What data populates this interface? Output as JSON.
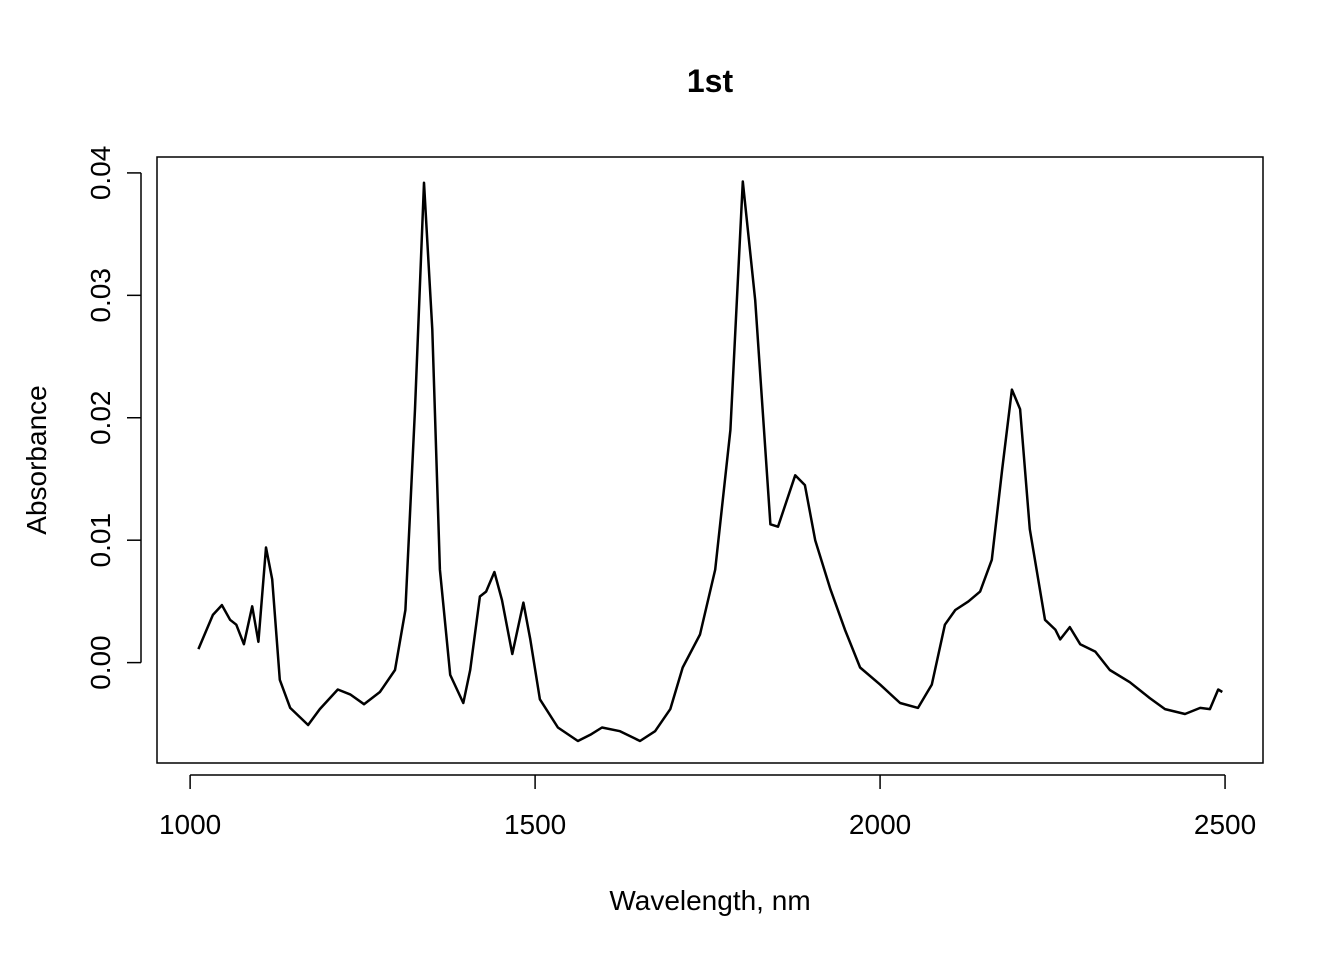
{
  "chart_data": {
    "type": "line",
    "title": "1st",
    "x_label": "Wavelength, nm",
    "y_label": "Absorbance",
    "x": [
      1012,
      1033,
      1046,
      1058,
      1067,
      1078,
      1090,
      1099,
      1110,
      1119,
      1130,
      1145,
      1171,
      1188,
      1214,
      1232,
      1252,
      1275,
      1297,
      1312,
      1326,
      1339,
      1351,
      1362,
      1377,
      1396,
      1406,
      1420,
      1429,
      1441,
      1452,
      1467,
      1483,
      1493,
      1507,
      1533,
      1562,
      1580,
      1597,
      1623,
      1652,
      1674,
      1696,
      1714,
      1739,
      1761,
      1783,
      1801,
      1819,
      1841,
      1852,
      1877,
      1891,
      1906,
      1928,
      1949,
      1971,
      2000,
      2029,
      2055,
      2075,
      2094,
      2109,
      2128,
      2145,
      2162,
      2177,
      2191,
      2203,
      2217,
      2239,
      2254,
      2261,
      2275,
      2290,
      2312,
      2333,
      2362,
      2391,
      2413,
      2442,
      2464,
      2478,
      2490,
      2496
    ],
    "series": [
      {
        "name": "1st",
        "color": "#000000",
        "values": [
          0.0011,
          0.0039,
          0.0047,
          0.0035,
          0.0031,
          0.0015,
          0.0046,
          0.0017,
          0.0094,
          0.0068,
          -0.0014,
          -0.0037,
          -0.0051,
          -0.0038,
          -0.0022,
          -0.0026,
          -0.0034,
          -0.0024,
          -0.0006,
          0.0043,
          0.0207,
          0.0392,
          0.0272,
          0.0076,
          -0.001,
          -0.0033,
          -0.0006,
          0.0054,
          0.0058,
          0.0074,
          0.0051,
          0.0007,
          0.0049,
          0.0019,
          -0.003,
          -0.0053,
          -0.0064,
          -0.0059,
          -0.0053,
          -0.0056,
          -0.0064,
          -0.0056,
          -0.0038,
          -0.0004,
          0.0023,
          0.0076,
          0.019,
          0.0393,
          0.0296,
          0.0113,
          0.0111,
          0.0153,
          0.0145,
          0.01,
          0.006,
          0.0027,
          -0.0004,
          -0.0018,
          -0.0033,
          -0.0037,
          -0.0018,
          0.0031,
          0.0043,
          0.005,
          0.0058,
          0.0084,
          0.0158,
          0.0223,
          0.0207,
          0.0109,
          0.0035,
          0.0027,
          0.0019,
          0.0029,
          0.0015,
          0.0009,
          -0.0006,
          -0.0016,
          -0.0029,
          -0.0038,
          -0.0042,
          -0.0037,
          -0.0038,
          -0.0022,
          -0.0024
        ]
      }
    ],
    "xlim": [
      952,
      2555
    ],
    "ylim": [
      -0.0082,
      0.0413
    ],
    "xticks": [
      1000,
      1500,
      2000,
      2500
    ],
    "yticks": [
      {
        "value": 0,
        "label": "0.00"
      },
      0.01,
      0.02,
      0.03,
      0.04
    ]
  }
}
